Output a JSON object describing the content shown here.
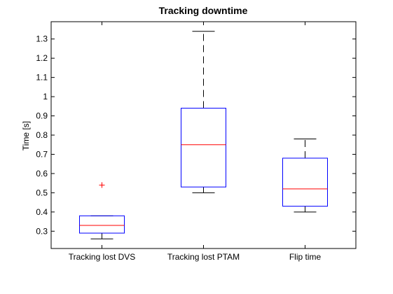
{
  "chart_data": {
    "type": "box",
    "title": "Tracking downtime",
    "xlabel": "",
    "ylabel": "Time [s]",
    "ylim": [
      0.21,
      1.39
    ],
    "yticks": [
      0.3,
      0.4,
      0.5,
      0.6,
      0.7,
      0.8,
      0.9,
      1,
      1.1,
      1.2,
      1.3
    ],
    "grid": false,
    "categories": [
      "Tracking lost DVS",
      "Tracking lost PTAM",
      "Flip time"
    ],
    "boxes": [
      {
        "label": "Tracking lost DVS",
        "whisker_low": 0.26,
        "q1": 0.29,
        "median": 0.33,
        "q3": 0.38,
        "whisker_high": 0.38,
        "outliers": [
          0.54
        ]
      },
      {
        "label": "Tracking lost PTAM",
        "whisker_low": 0.5,
        "q1": 0.53,
        "median": 0.75,
        "q3": 0.94,
        "whisker_high": 1.34,
        "outliers": []
      },
      {
        "label": "Flip time",
        "whisker_low": 0.4,
        "q1": 0.43,
        "median": 0.52,
        "q3": 0.68,
        "whisker_high": 0.78,
        "outliers": []
      }
    ],
    "colors": {
      "box": "#0000ff",
      "median": "#ff0000",
      "whisker": "#000000",
      "outlier": "#ff0000"
    }
  }
}
